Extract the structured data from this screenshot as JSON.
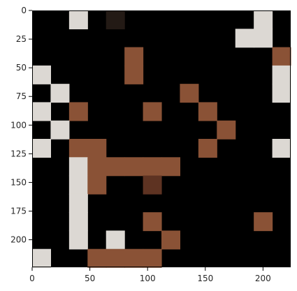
{
  "chart_data": {
    "type": "heatmap",
    "content": "image-tile-mosaic",
    "x_ticks": [
      "0",
      "50",
      "100",
      "150",
      "200"
    ],
    "x_tick_values": [
      0,
      50,
      100,
      150,
      200
    ],
    "y_ticks": [
      "0",
      "25",
      "50",
      "75",
      "100",
      "125",
      "150",
      "175",
      "200"
    ],
    "y_tick_values": [
      0,
      25,
      50,
      75,
      100,
      125,
      150,
      175,
      200
    ],
    "xlim": [
      0,
      224
    ],
    "ylim": [
      224,
      0
    ],
    "grid": false,
    "grid_size": [
      14,
      14
    ],
    "tile_colors": {
      "black": "#000000",
      "light": "#dcd8d3",
      "skin": "#8a5236",
      "skin_dark": "#5e3322",
      "hair": "#231a15"
    },
    "tile_map": [
      "..L.B.......L.",
      "...........LL.",
      ".....S.......S",
      "L....S.......L",
      ".L......S....L",
      "L.S...S..S....",
      ".L........S...",
      "L.SS.....S...L",
      "..LSSSSS......",
      "..LS..D.......",
      "..L...........",
      "..L...S.....S.",
      "..L.L..S......",
      "L..SSSS......."
    ]
  }
}
